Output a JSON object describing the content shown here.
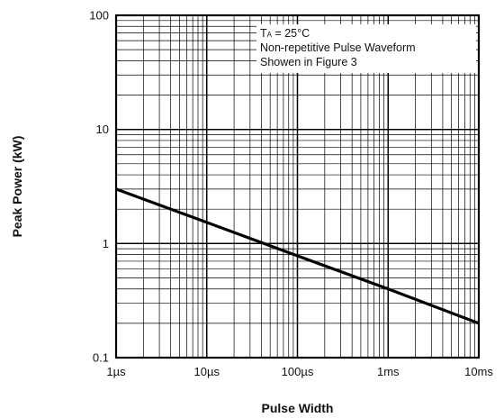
{
  "chart_data": {
    "type": "line",
    "x_scale": "log",
    "y_scale": "log",
    "xlabel": "Pulse Width",
    "ylabel": "Peak Power (kW)",
    "x_unit": "s",
    "xlim": [
      1e-06,
      0.01
    ],
    "ylim": [
      0.1,
      100
    ],
    "x_ticks": [
      {
        "value": 1e-06,
        "label": "1µs"
      },
      {
        "value": 1e-05,
        "label": "10µs"
      },
      {
        "value": 0.0001,
        "label": "100µs"
      },
      {
        "value": 0.001,
        "label": "1ms"
      },
      {
        "value": 0.01,
        "label": "10ms"
      }
    ],
    "y_ticks": [
      {
        "value": 0.1,
        "label": "0.1"
      },
      {
        "value": 1,
        "label": "1"
      },
      {
        "value": 10,
        "label": "10"
      },
      {
        "value": 100,
        "label": "100"
      }
    ],
    "grid": true,
    "series": [
      {
        "color": "#000000",
        "x": [
          1e-06,
          1e-05,
          0.0001,
          0.001,
          0.01
        ],
        "y": [
          3.0,
          1.53,
          0.78,
          0.4,
          0.2
        ]
      }
    ],
    "annotation": {
      "location": "top-right",
      "lines": [
        {
          "main": "T",
          "sub": "A",
          "rest": " = 25°C"
        },
        {
          "main": "Non-repetitive Pulse Waveform",
          "sub": "",
          "rest": ""
        },
        {
          "main": "Showen in Figure 3",
          "sub": "",
          "rest": ""
        }
      ]
    }
  }
}
